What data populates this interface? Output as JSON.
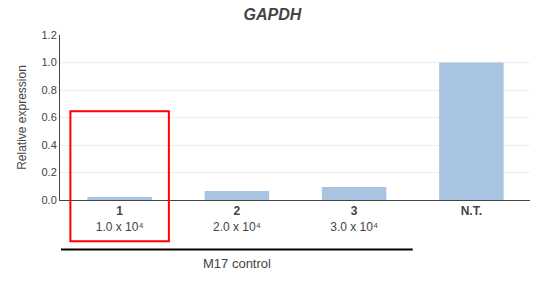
{
  "chart_data": {
    "type": "bar",
    "title": "GAPDH",
    "ylabel": "Relative expression",
    "xlabel": "M17 control",
    "categories": [
      "1",
      "2",
      "3",
      "N.T."
    ],
    "category_sublabels": [
      "1.0 x 10⁴",
      "2.0 x 10⁴",
      "3.0 x 10⁴",
      null
    ],
    "values": [
      0.022,
      0.065,
      0.095,
      1.0
    ],
    "color": "#a8c4e0",
    "ylim": [
      0,
      1.2
    ],
    "yticks": [
      {
        "value": 0,
        "label": "0.0"
      },
      0.2,
      0.4,
      0.6,
      0.8,
      {
        "value": 1.0,
        "label": "1.0"
      },
      1.2
    ],
    "grid": true,
    "highlight": {
      "category": "1",
      "top": 0.645,
      "color": "red"
    }
  }
}
